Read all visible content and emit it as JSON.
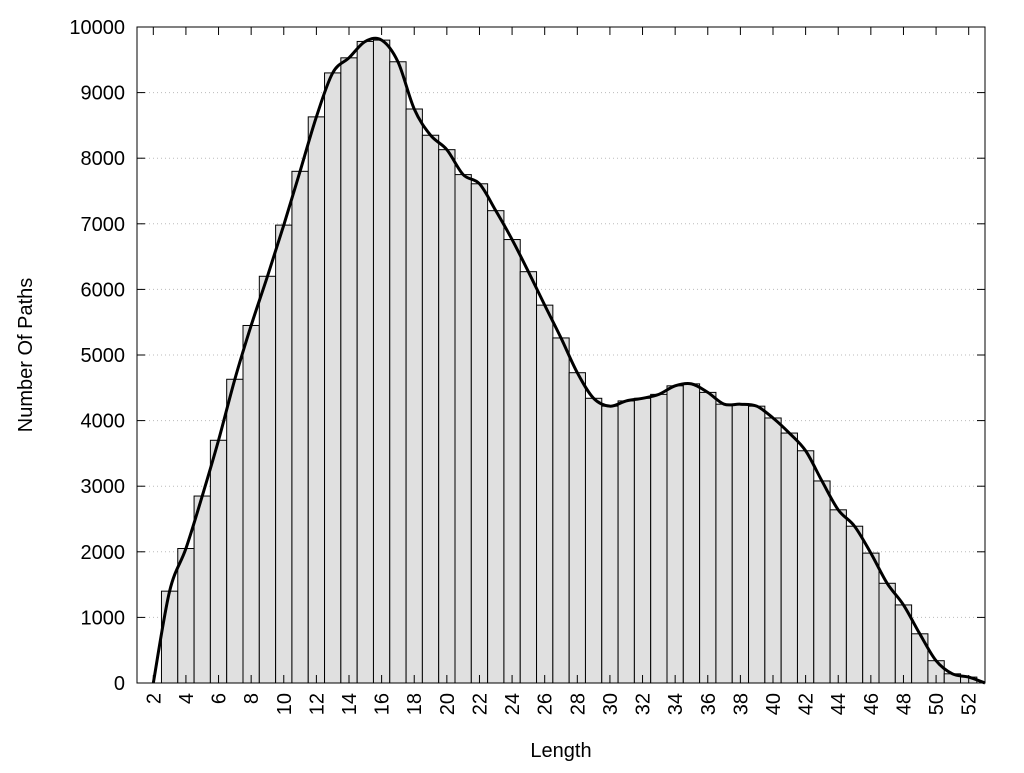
{
  "chart_data": {
    "type": "histogram",
    "xlabel": "Length",
    "ylabel": "Number Of Paths",
    "bins": [
      2.5,
      3.5,
      4.5,
      5.5,
      6.5,
      7.5,
      8.5,
      9.5,
      10.5,
      11.5,
      12.5,
      13.5,
      14.5,
      15.5,
      16.5,
      17.5,
      18.5,
      19.5,
      20.5,
      21.5,
      22.5,
      23.5,
      24.5,
      25.5,
      26.5,
      27.5,
      28.5,
      29.5,
      30.5,
      31.5,
      32.5,
      33.5,
      34.5,
      35.5,
      36.5,
      37.5,
      38.5,
      39.5,
      40.5,
      41.5,
      42.5,
      43.5,
      44.5,
      45.5,
      46.5,
      47.5,
      48.5,
      49.5,
      50.5,
      51.5,
      52.5
    ],
    "counts": [
      1400,
      2050,
      2850,
      3700,
      4630,
      5450,
      6200,
      6980,
      7800,
      8630,
      9300,
      9530,
      9780,
      9800,
      9470,
      8750,
      8350,
      8130,
      7750,
      7610,
      7200,
      6760,
      6270,
      5760,
      5260,
      4730,
      4340,
      4220,
      4300,
      4340,
      4400,
      4530,
      4560,
      4430,
      4250,
      4250,
      4220,
      4040,
      3810,
      3540,
      3080,
      2640,
      2390,
      1980,
      1520,
      1190,
      750,
      340,
      140,
      90
    ],
    "color": "#e0e0e0",
    "curve": {
      "color": "#000000",
      "x": [
        2,
        3,
        4,
        5,
        6,
        7,
        8,
        9,
        10,
        11,
        12,
        13,
        14,
        15,
        16,
        17,
        18,
        19,
        20,
        21,
        22,
        23,
        24,
        25,
        26,
        27,
        28,
        29,
        30,
        31,
        32,
        33,
        34,
        35,
        36,
        37,
        38,
        39,
        40,
        41,
        42,
        43,
        44,
        45,
        46,
        47,
        48,
        49,
        50,
        51,
        52,
        53
      ],
      "values": [
        0,
        1400,
        2050,
        2850,
        3700,
        4630,
        5450,
        6200,
        6980,
        7800,
        8630,
        9300,
        9530,
        9780,
        9800,
        9470,
        8750,
        8350,
        8130,
        7750,
        7610,
        7200,
        6760,
        6270,
        5760,
        5260,
        4730,
        4340,
        4220,
        4300,
        4340,
        4400,
        4530,
        4560,
        4430,
        4250,
        4250,
        4220,
        4040,
        3810,
        3540,
        3080,
        2640,
        2390,
        1980,
        1520,
        1190,
        750,
        340,
        140,
        90,
        0
      ]
    },
    "xlim": [
      1,
      53
    ],
    "ylim": [
      0,
      10000
    ],
    "xticks": [
      2,
      4,
      6,
      8,
      10,
      12,
      14,
      16,
      18,
      20,
      22,
      24,
      26,
      28,
      30,
      32,
      34,
      36,
      38,
      40,
      42,
      44,
      46,
      48,
      50,
      52
    ],
    "yticks": [
      0,
      1000,
      2000,
      3000,
      4000,
      5000,
      6000,
      7000,
      8000,
      9000,
      10000
    ],
    "grid": true
  }
}
